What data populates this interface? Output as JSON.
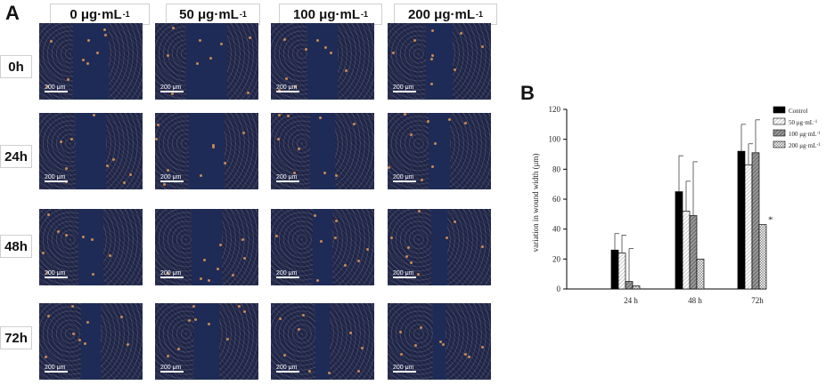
{
  "panel_a": {
    "letter": "A",
    "columns": [
      {
        "base": "0 μg·mL",
        "sup": "-1"
      },
      {
        "base": "50 μg·mL",
        "sup": "-1"
      },
      {
        "base": "100 μg·mL",
        "sup": "-1"
      },
      {
        "base": "200 μg·mL",
        "sup": "-1"
      }
    ],
    "rows": [
      "0h",
      "24h",
      "48h",
      "72h"
    ],
    "scale_bar": "200 μm"
  },
  "panel_b": {
    "letter": "B"
  },
  "chart_data": {
    "type": "bar",
    "title": "",
    "xlabel": "",
    "ylabel": "variation in wound width (μm)",
    "categories": [
      "24 h",
      "48 h",
      "72h"
    ],
    "ylim": [
      0,
      120
    ],
    "yticks": [
      0,
      20,
      40,
      60,
      80,
      100,
      120
    ],
    "series": [
      {
        "name": "Control",
        "values": [
          26,
          65,
          92
        ],
        "errors": [
          11,
          24,
          18
        ],
        "color": "#000000"
      },
      {
        "name": "50 μg·mL",
        "name_sup": "-1",
        "values": [
          24,
          52,
          83
        ],
        "errors": [
          12,
          20,
          14
        ],
        "color": "#b8b8b8"
      },
      {
        "name": "100 μg·mL",
        "name_sup": "-1",
        "values": [
          5,
          49,
          91
        ],
        "errors": [
          22,
          36,
          22
        ],
        "color": "#555555"
      },
      {
        "name": "200 μg·mL",
        "name_sup": "-1",
        "values": [
          2,
          20,
          43
        ],
        "errors": [
          0,
          0,
          0
        ],
        "color": "#888888"
      }
    ],
    "annotation": "*",
    "legend_position": "top-right"
  }
}
